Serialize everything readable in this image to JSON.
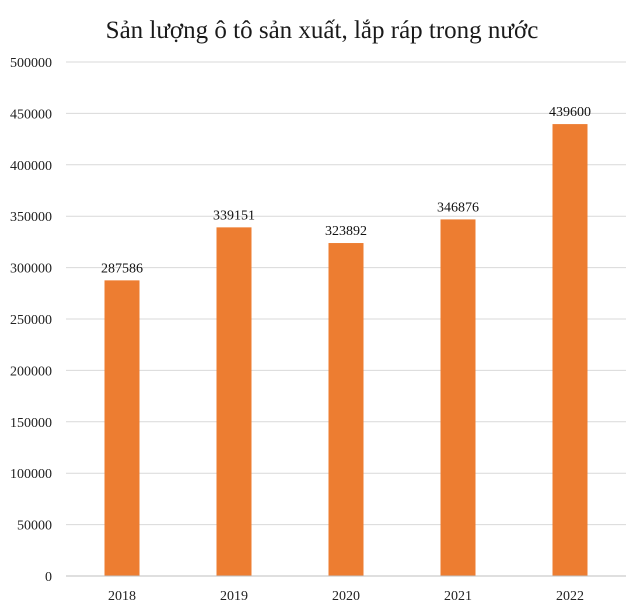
{
  "chart_data": {
    "type": "bar",
    "title": "Sản lượng ô tô sản xuất, lắp ráp trong nước",
    "xlabel": "",
    "ylabel": "",
    "categories": [
      "2018",
      "2019",
      "2020",
      "2021",
      "2022"
    ],
    "series": [
      {
        "values": [
          287586,
          339151,
          323892,
          346876,
          439600
        ]
      }
    ],
    "data_labels": [
      "287586",
      "339151",
      "323892",
      "346876",
      "439600"
    ],
    "ylim": [
      0,
      500000
    ],
    "y_ticks": [
      0,
      50000,
      100000,
      150000,
      200000,
      250000,
      300000,
      350000,
      400000,
      450000,
      500000
    ],
    "y_tick_labels": [
      "0",
      "50000",
      "100000",
      "150000",
      "200000",
      "250000",
      "300000",
      "350000",
      "400000",
      "450000",
      "500000"
    ],
    "grid": true,
    "legend": "none",
    "colors": {
      "bar": "#ED7D31",
      "grid": "#D9D9D9",
      "axis": "#BFBFBF"
    }
  }
}
